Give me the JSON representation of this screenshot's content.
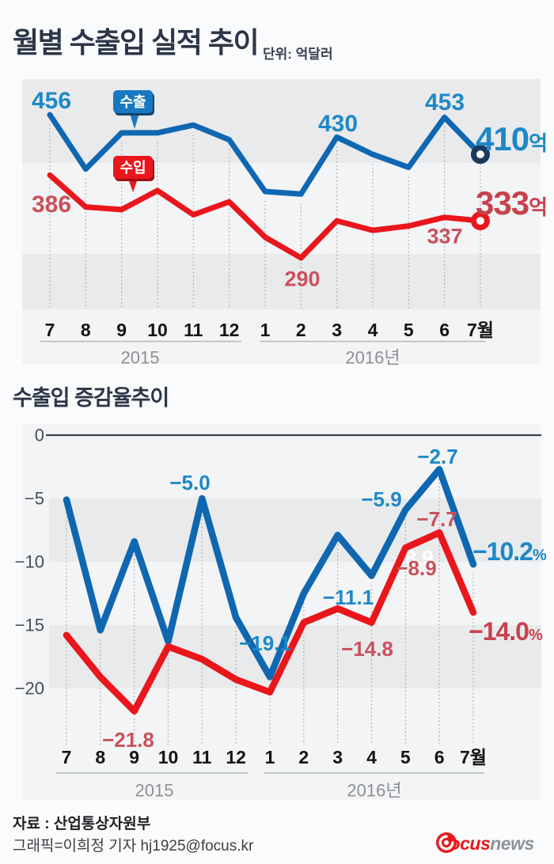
{
  "header": {
    "title": "월별 수출입 실적 추이",
    "unit": "단위: 억달러"
  },
  "colors": {
    "export_line": "#0f67b1",
    "import_line": "#e9161c",
    "export_label": "#1e88c7",
    "import_label": "#c9515c",
    "import_label_strong": "#c7414d",
    "marker_ring_export": "#1a3a5c",
    "marker_ring_import": "#e9161c",
    "band_dark": "#e9eaeb",
    "wash": "#f3f4f5",
    "zero_line": "#3c4350",
    "dash_line": "#9aa0a5",
    "month_label": "#141414",
    "year_label": "#8d9094",
    "underline": "#b5b8ba",
    "ytick_label": "#454c58",
    "badge_export_bg": "#1879c0",
    "badge_import_bg": "#e9161c"
  },
  "axis": {
    "months": [
      "7",
      "8",
      "9",
      "10",
      "11",
      "12",
      "1",
      "2",
      "3",
      "4",
      "5",
      "6",
      "7월"
    ],
    "years": [
      "2015",
      "2016년"
    ],
    "yticks_chart2": [
      "0",
      "−5",
      "−10",
      "−15",
      "−20"
    ]
  },
  "chart1": {
    "labels": {
      "export_start": "456",
      "export_mar": "430",
      "export_jun": "453",
      "import_start": "386",
      "import_feb": "290",
      "import_jun": "337",
      "export_final": {
        "value": "410",
        "suffix": "억"
      },
      "import_final": {
        "value": "333",
        "suffix": "억"
      },
      "badge_export": "수출",
      "badge_import": "수입"
    }
  },
  "chart2": {
    "title": "수출입 증감율추이",
    "labels": {
      "export_nov": "−5.0",
      "export_jan": "−19.1",
      "export_apr": "−11.1",
      "export_may": "−5.9",
      "export_jun": "−2.7",
      "import_sep": "−21.8",
      "import_apr": "−14.8",
      "import_may": "−8.9",
      "import_jun": "−7.7",
      "ghost_import_may": "−8.9",
      "export_final": {
        "value": "−10.2",
        "suffix": "%"
      },
      "import_final": {
        "value": "−14.0",
        "suffix": "%"
      }
    }
  },
  "chart_data": [
    {
      "type": "line",
      "title": "월별 수출입 실적 추이",
      "unit": "억달러",
      "categories": [
        "2015-7",
        "2015-8",
        "2015-9",
        "2015-10",
        "2015-11",
        "2015-12",
        "2016-1",
        "2016-2",
        "2016-3",
        "2016-4",
        "2016-5",
        "2016-6",
        "2016-7"
      ],
      "series": [
        {
          "name": "수출",
          "color": "#0f67b1",
          "values": [
            456,
            393,
            435,
            435,
            444,
            427,
            367,
            364,
            430,
            410,
            395,
            453,
            410
          ]
        },
        {
          "name": "수입",
          "color": "#e9161c",
          "values": [
            386,
            349,
            346,
            368,
            340,
            355,
            314,
            290,
            333,
            322,
            327,
            337,
            333
          ]
        }
      ],
      "labeled_points": [
        {
          "series": "수출",
          "category": "2015-7",
          "value": 456
        },
        {
          "series": "수출",
          "category": "2016-3",
          "value": 430
        },
        {
          "series": "수출",
          "category": "2016-6",
          "value": 453
        },
        {
          "series": "수출",
          "category": "2016-7",
          "value": 410
        },
        {
          "series": "수입",
          "category": "2015-7",
          "value": 386
        },
        {
          "series": "수입",
          "category": "2016-2",
          "value": 290
        },
        {
          "series": "수입",
          "category": "2016-6",
          "value": 337
        },
        {
          "series": "수입",
          "category": "2016-7",
          "value": 333
        }
      ],
      "legend": [
        "수출",
        "수입"
      ],
      "grid": "dotted-vertical"
    },
    {
      "type": "line",
      "title": "수출입 증감율추이",
      "unit": "%",
      "categories": [
        "2015-7",
        "2015-8",
        "2015-9",
        "2015-10",
        "2015-11",
        "2015-12",
        "2016-1",
        "2016-2",
        "2016-3",
        "2016-4",
        "2016-5",
        "2016-6",
        "2016-7"
      ],
      "series": [
        {
          "name": "수출",
          "color": "#0f67b1",
          "values": [
            -5.1,
            -15.4,
            -8.4,
            -16.3,
            -5.0,
            -14.4,
            -19.1,
            -12.5,
            -7.9,
            -11.1,
            -5.9,
            -2.7,
            -10.2
          ]
        },
        {
          "name": "수입",
          "color": "#e9161c",
          "values": [
            -15.8,
            -19.1,
            -21.8,
            -16.7,
            -17.7,
            -19.3,
            -20.3,
            -14.8,
            -13.7,
            -14.8,
            -8.9,
            -7.7,
            -14.0
          ]
        }
      ],
      "labeled_points": [
        {
          "series": "수출",
          "category": "2015-11",
          "value": -5.0
        },
        {
          "series": "수출",
          "category": "2016-1",
          "value": -19.1
        },
        {
          "series": "수출",
          "category": "2016-4",
          "value": -11.1
        },
        {
          "series": "수출",
          "category": "2016-5",
          "value": -5.9
        },
        {
          "series": "수출",
          "category": "2016-6",
          "value": -2.7
        },
        {
          "series": "수출",
          "category": "2016-7",
          "value": -10.2
        },
        {
          "series": "수입",
          "category": "2015-9",
          "value": -21.8
        },
        {
          "series": "수입",
          "category": "2016-4",
          "value": -14.8
        },
        {
          "series": "수입",
          "category": "2016-5",
          "value": -8.9
        },
        {
          "series": "수입",
          "category": "2016-6",
          "value": -7.7
        },
        {
          "series": "수입",
          "category": "2016-7",
          "value": -14.0
        }
      ],
      "ylim": [
        -23,
        0
      ],
      "yticks": [
        0,
        -5,
        -10,
        -15,
        -20
      ],
      "grid": "dotted-vertical"
    }
  ],
  "footer": {
    "source": "자료 : 산업통상자원부",
    "credit": "그래픽=이희정 기자 hj1925@focus.kr",
    "logo": {
      "brand": "Focus",
      "brand2": "news"
    }
  }
}
